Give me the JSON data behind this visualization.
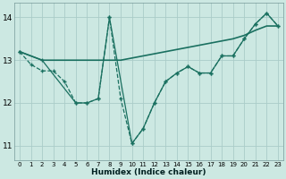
{
  "xlabel": "Humidex (Indice chaleur)",
  "bg_color": "#cce8e2",
  "grid_color": "#aaccc8",
  "line_color": "#1a7060",
  "ylim": [
    10.65,
    14.35
  ],
  "yticks": [
    11,
    12,
    13,
    14
  ],
  "xlim": [
    -0.5,
    23.5
  ],
  "xticks": [
    0,
    1,
    2,
    3,
    4,
    5,
    6,
    7,
    8,
    9,
    10,
    11,
    12,
    13,
    14,
    15,
    16,
    17,
    18,
    19,
    20,
    21,
    22,
    23
  ],
  "line_main_x": [
    0,
    1,
    2,
    3,
    4,
    5,
    6,
    7,
    8,
    9,
    10,
    11,
    12,
    13,
    14,
    15,
    16,
    17,
    18,
    19,
    20,
    21,
    22,
    23
  ],
  "line_main_y": [
    13.2,
    12.9,
    12.75,
    12.75,
    12.5,
    12.0,
    12.0,
    12.1,
    14.0,
    12.1,
    11.05,
    11.4,
    12.0,
    12.5,
    12.7,
    12.85,
    12.7,
    12.7,
    13.1,
    13.1,
    13.5,
    13.85,
    14.1,
    13.8
  ],
  "line_flat_x": [
    0,
    2,
    3,
    4,
    5,
    6,
    7,
    8,
    9,
    10,
    11,
    12,
    13,
    14,
    15,
    16,
    17,
    18,
    19,
    20,
    21,
    22,
    23
  ],
  "line_flat_y": [
    13.2,
    13.0,
    13.0,
    13.0,
    13.0,
    13.0,
    13.0,
    13.0,
    13.0,
    13.05,
    13.1,
    13.15,
    13.2,
    13.25,
    13.3,
    13.35,
    13.4,
    13.45,
    13.5,
    13.58,
    13.7,
    13.8,
    13.8
  ],
  "line_diag_x": [
    0,
    2,
    5,
    6,
    7,
    8,
    10,
    11,
    12,
    13,
    14,
    15,
    16,
    17,
    18,
    19,
    20,
    21,
    22,
    23
  ],
  "line_diag_y": [
    13.2,
    13.0,
    12.0,
    12.0,
    12.1,
    14.0,
    11.05,
    11.4,
    12.0,
    12.5,
    12.7,
    12.85,
    12.7,
    12.7,
    13.1,
    13.1,
    13.5,
    13.85,
    14.1,
    13.8
  ]
}
